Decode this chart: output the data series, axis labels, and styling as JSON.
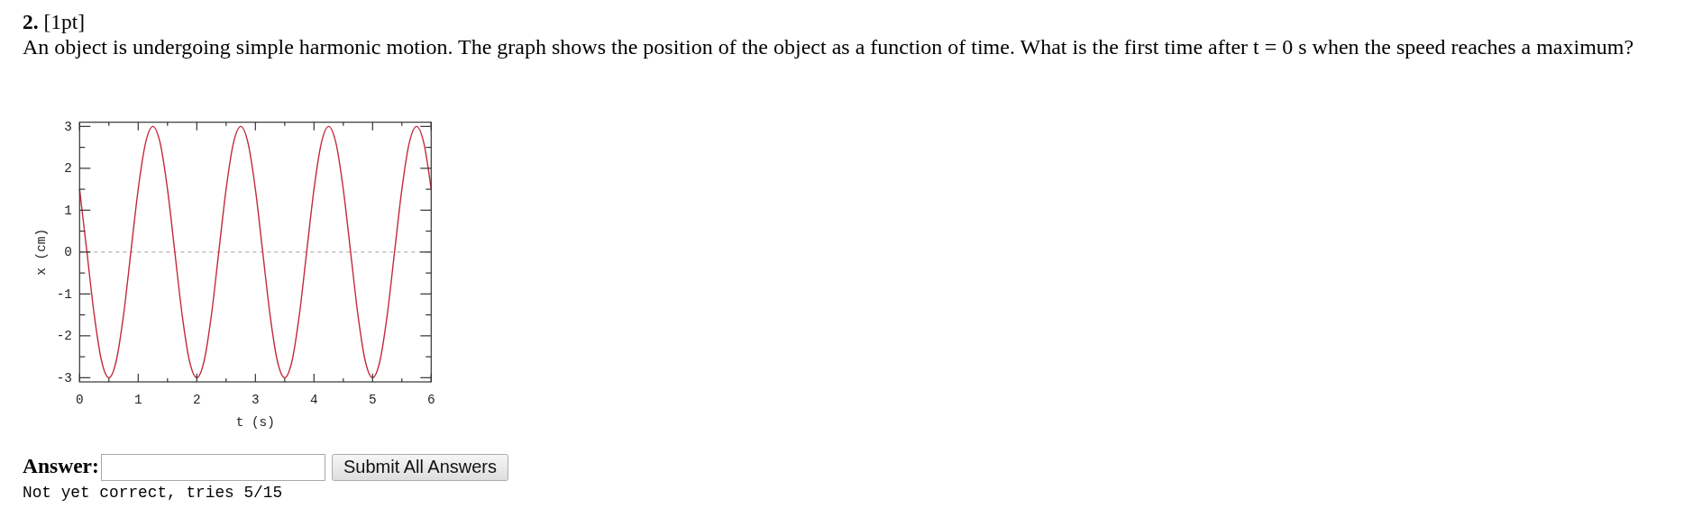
{
  "chart_data": {
    "type": "line",
    "title": "2. [1pt]",
    "subtitle": "An object is undergoing simple harmonic motion. The graph shows the position of the object as a function of time. What is the first time after t = 0 s when the speed reaches a maximum?",
    "xlabel": "t (s)",
    "ylabel": "x (cm)",
    "x": [
      0,
      0.125,
      0.25,
      0.375,
      0.5,
      0.625,
      0.75,
      0.875,
      1,
      1.125,
      1.25,
      1.375,
      1.5,
      1.625,
      1.75,
      1.875,
      2,
      2.125,
      2.25,
      2.375,
      2.5,
      2.625,
      2.75,
      2.875,
      3,
      3.125,
      3.25,
      3.375,
      3.5,
      3.625,
      3.75,
      3.875,
      4,
      4.125,
      4.25,
      4.375,
      4.5,
      4.625,
      4.75,
      4.875,
      5,
      5.125,
      5.25,
      5.375,
      5.5,
      5.625,
      5.75,
      5.875,
      6
    ],
    "series": [
      {
        "color": "#c42a3a",
        "values": [
          1.5,
          0,
          -1.5,
          -2.6,
          -3,
          -2.6,
          -1.5,
          0,
          1.5,
          2.6,
          3,
          2.6,
          1.5,
          0,
          -1.5,
          -2.6,
          -3,
          -2.6,
          -1.5,
          0,
          1.5,
          2.6,
          3,
          2.6,
          1.5,
          0,
          -1.5,
          -2.6,
          -3,
          -2.6,
          -1.5,
          0,
          1.5,
          2.6,
          3,
          2.6,
          1.5,
          0,
          -1.5,
          -2.6,
          -3,
          -2.6,
          -1.5,
          0,
          1.5,
          2.6,
          3,
          2.6,
          1.5
        ]
      }
    ],
    "xlim": [
      0,
      6
    ],
    "ylim": [
      -3.1,
      3.1
    ],
    "xticks": [
      0,
      {
        "value": 0.5,
        "label": null
      },
      1,
      {
        "value": 1.5,
        "label": null
      },
      2,
      {
        "value": 2.5,
        "label": null
      },
      3,
      {
        "value": 3.5,
        "label": null
      },
      4,
      {
        "value": 4.5,
        "label": null
      },
      5,
      {
        "value": 5.5,
        "label": null
      },
      6
    ],
    "yticks": [
      -3,
      {
        "value": -2.5,
        "label": null
      },
      -2,
      {
        "value": -1.5,
        "label": null
      },
      -1,
      {
        "value": -0.5,
        "label": null
      },
      0,
      {
        "value": 0.5,
        "label": null
      },
      1,
      {
        "value": 1.5,
        "label": null
      },
      2,
      {
        "value": 2.5,
        "label": null
      },
      3
    ],
    "ref_lines": [
      {
        "axis": "y",
        "value": 0,
        "color": "#a0a0a0",
        "line_style": "dashed"
      }
    ],
    "annotations": [
      "Answer:",
      "Submit All Answers",
      "Not yet correct, tries 5/15"
    ]
  }
}
